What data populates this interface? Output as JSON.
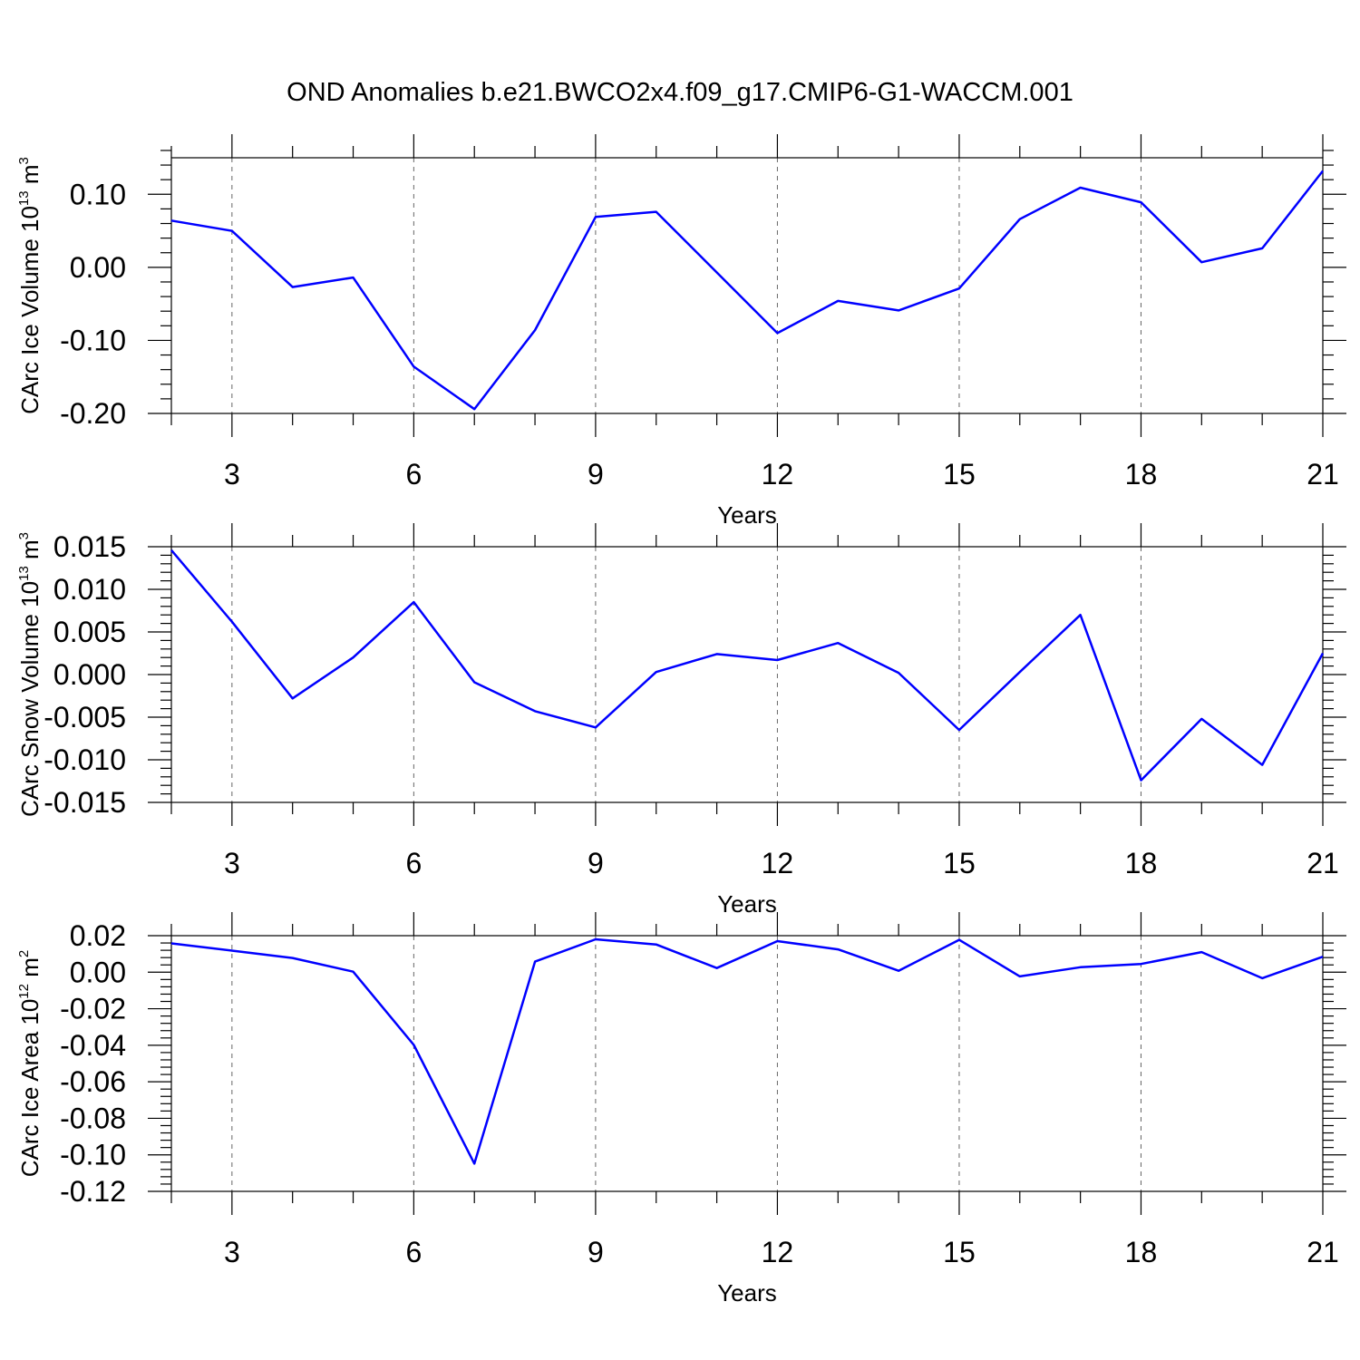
{
  "chart_data": {
    "type": "line",
    "title": "OND Anomalies b.e21.BWCO2x4.f09_g17.CMIP6-G1-WACCM.001",
    "line_color": "#0000ff",
    "grid": "vertical dashed at major ticks",
    "panels": [
      {
        "id": "ice-volume",
        "ylabel_main": "CArc Ice Volume 10",
        "ylabel_exp": "13",
        "ylabel_unit": " m",
        "ylabel_unit_exp": "3",
        "xlabel": "Years",
        "xlim": [
          2,
          21
        ],
        "ylim": [
          -0.2,
          0.15
        ],
        "x_ticks": [
          3,
          6,
          9,
          12,
          15,
          18,
          21
        ],
        "x_tick_labels": [
          "3",
          "6",
          "9",
          "12",
          "15",
          "18",
          "21"
        ],
        "y_ticks": [
          -0.2,
          -0.1,
          0.0,
          0.1
        ],
        "y_tick_labels": [
          "-0.20",
          "-0.10",
          "0.00",
          "0.10"
        ],
        "y_minor_step": 0.02,
        "x": [
          2,
          3,
          4,
          5,
          6,
          7,
          8,
          9,
          10,
          11,
          12,
          13,
          14,
          15,
          16,
          17,
          18,
          19,
          20,
          21
        ],
        "values": [
          0.064,
          0.05,
          -0.027,
          -0.014,
          -0.136,
          -0.194,
          -0.086,
          0.069,
          0.076,
          -0.007,
          -0.09,
          -0.046,
          -0.059,
          -0.029,
          0.066,
          0.109,
          0.089,
          0.007,
          0.026,
          0.132
        ]
      },
      {
        "id": "snow-volume",
        "ylabel_main": "CArc Snow Volume 10",
        "ylabel_exp": "13",
        "ylabel_unit": " m",
        "ylabel_unit_exp": "3",
        "xlabel": "Years",
        "xlim": [
          2,
          21
        ],
        "ylim": [
          -0.015,
          0.015
        ],
        "x_ticks": [
          3,
          6,
          9,
          12,
          15,
          18,
          21
        ],
        "x_tick_labels": [
          "3",
          "6",
          "9",
          "12",
          "15",
          "18",
          "21"
        ],
        "y_ticks": [
          -0.015,
          -0.01,
          -0.005,
          0.0,
          0.005,
          0.01,
          0.015
        ],
        "y_tick_labels": [
          "-0.015",
          "-0.010",
          "-0.005",
          "0.000",
          "0.005",
          "0.010",
          "0.015"
        ],
        "y_minor_step": 0.001,
        "x": [
          2,
          3,
          4,
          5,
          6,
          7,
          8,
          9,
          10,
          11,
          12,
          13,
          14,
          15,
          16,
          17,
          18,
          19,
          20,
          21
        ],
        "values": [
          0.0146,
          0.0062,
          -0.0028,
          0.002,
          0.0085,
          -0.0009,
          -0.0043,
          -0.0062,
          0.0003,
          0.0024,
          0.0017,
          0.0037,
          0.0002,
          -0.0065,
          0.0003,
          0.007,
          -0.0124,
          -0.0052,
          -0.0106,
          0.0025
        ]
      },
      {
        "id": "ice-area",
        "ylabel_main": "CArc Ice Area 10",
        "ylabel_exp": "12",
        "ylabel_unit": " m",
        "ylabel_unit_exp": "2",
        "xlabel": "Years",
        "xlim": [
          2,
          21
        ],
        "ylim": [
          -0.12,
          0.02
        ],
        "x_ticks": [
          3,
          6,
          9,
          12,
          15,
          18,
          21
        ],
        "x_tick_labels": [
          "3",
          "6",
          "9",
          "12",
          "15",
          "18",
          "21"
        ],
        "y_ticks": [
          -0.12,
          -0.1,
          -0.08,
          -0.06,
          -0.04,
          -0.02,
          0.0,
          0.02
        ],
        "y_tick_labels": [
          "-0.12",
          "-0.10",
          "-0.08",
          "-0.06",
          "-0.04",
          "-0.02",
          "0.00",
          "0.02"
        ],
        "y_minor_step": 0.004,
        "x": [
          2,
          3,
          4,
          5,
          6,
          7,
          8,
          9,
          10,
          11,
          12,
          13,
          14,
          15,
          16,
          17,
          18,
          19,
          20,
          21
        ],
        "values": [
          0.0158,
          0.0118,
          0.0078,
          0.0003,
          -0.0398,
          -0.1048,
          0.0058,
          0.018,
          0.0152,
          0.0023,
          0.017,
          0.0125,
          0.0008,
          0.0177,
          -0.0023,
          0.0027,
          0.0045,
          0.011,
          -0.0033,
          0.0085
        ]
      }
    ]
  }
}
